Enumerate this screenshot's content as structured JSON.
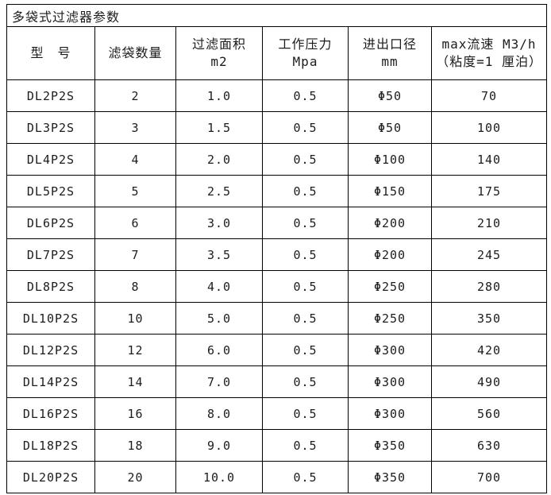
{
  "title": "多袋式过滤器参数",
  "table": {
    "columns": [
      {
        "label": "型　号",
        "sub": ""
      },
      {
        "label": "滤袋数量",
        "sub": ""
      },
      {
        "label": "过滤面积",
        "sub": "m2"
      },
      {
        "label": "工作压力",
        "sub": "Mpa"
      },
      {
        "label": "进出口径",
        "sub": "mm"
      },
      {
        "label": "max流速 M3/h",
        "sub": "（粘度=1 厘泊）"
      }
    ],
    "rows": [
      [
        "DL2P2S",
        "2",
        "1.0",
        "0.5",
        "Φ50",
        "70"
      ],
      [
        "DL3P2S",
        "3",
        "1.5",
        "0.5",
        "Φ50",
        "100"
      ],
      [
        "DL4P2S",
        "4",
        "2.0",
        "0.5",
        "Φ100",
        "140"
      ],
      [
        "DL5P2S",
        "5",
        "2.5",
        "0.5",
        "Φ150",
        "175"
      ],
      [
        "DL6P2S",
        "6",
        "3.0",
        "0.5",
        "Φ200",
        "210"
      ],
      [
        "DL7P2S",
        "7",
        "3.5",
        "0.5",
        "Φ200",
        "245"
      ],
      [
        "DL8P2S",
        "8",
        "4.0",
        "0.5",
        "Φ250",
        "280"
      ],
      [
        "DL10P2S",
        "10",
        "5.0",
        "0.5",
        "Φ250",
        "350"
      ],
      [
        "DL12P2S",
        "12",
        "6.0",
        "0.5",
        "Φ300",
        "420"
      ],
      [
        "DL14P2S",
        "14",
        "7.0",
        "0.5",
        "Φ300",
        "490"
      ],
      [
        "DL16P2S",
        "16",
        "8.0",
        "0.5",
        "Φ300",
        "560"
      ],
      [
        "DL18P2S",
        "18",
        "9.0",
        "0.5",
        "Φ350",
        "630"
      ],
      [
        "DL20P2S",
        "20",
        "10.0",
        "0.5",
        "Φ350",
        "700"
      ]
    ]
  },
  "colors": {
    "background": "#ffffff",
    "border": "#000000",
    "text": "#1c1c1c"
  }
}
